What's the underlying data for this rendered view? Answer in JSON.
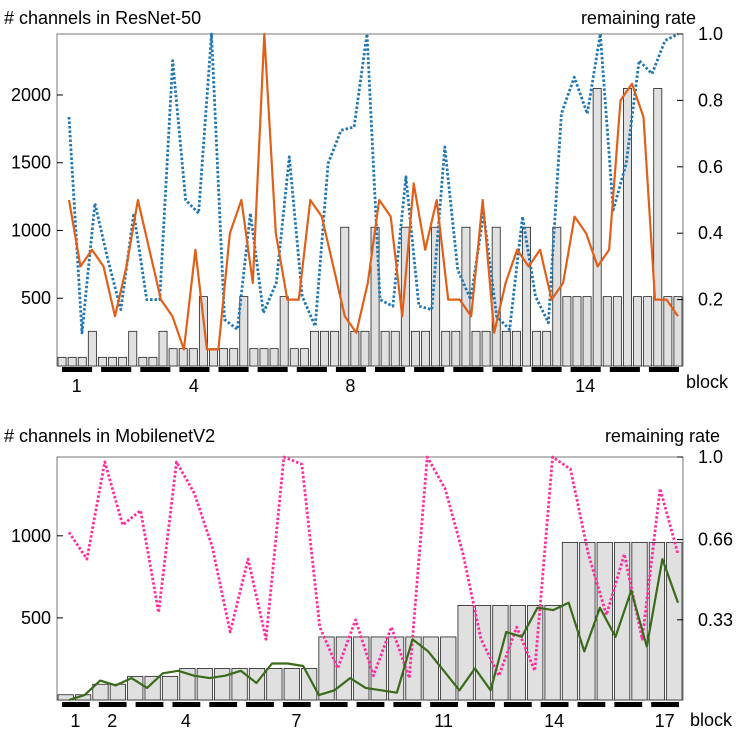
{
  "chart_data": [
    {
      "type": "bar",
      "title": "# channels in ResNet-50",
      "y2label": "remaining rate",
      "xlabel": "block",
      "ylim": [
        0,
        2450
      ],
      "y2lim": [
        0,
        1.0
      ],
      "yticks": [
        500,
        1000,
        1500,
        2000
      ],
      "y2ticks": [
        "0.2",
        "0.4",
        "0.6",
        "0.8",
        "1.0"
      ],
      "y2tick_values": [
        0.2,
        0.4,
        0.6,
        0.8,
        1.0
      ],
      "block_labels": [
        {
          "block": 1,
          "label": "1"
        },
        {
          "block": 4,
          "label": "4"
        },
        {
          "block": 8,
          "label": "8"
        },
        {
          "block": 14,
          "label": "14"
        }
      ],
      "num_blocks": 16,
      "bar_color": "#e0e0e0",
      "series": [
        {
          "role": "channels-bars",
          "values": [
            64,
            64,
            64,
            256,
            64,
            64,
            64,
            256,
            64,
            64,
            256,
            128,
            128,
            128,
            512,
            128,
            128,
            128,
            512,
            128,
            128,
            128,
            512,
            128,
            128,
            256,
            256,
            256,
            1024,
            256,
            256,
            1024,
            256,
            256,
            1024,
            256,
            256,
            1024,
            256,
            256,
            1024,
            256,
            256,
            1024,
            256,
            256,
            1024,
            256,
            256,
            1024,
            512,
            512,
            512,
            2048,
            512,
            512,
            2048,
            512,
            512,
            2048,
            512,
            512
          ]
        },
        {
          "role": "remaining-rate",
          "color": "#1f77b4",
          "style": "dotted",
          "values": [
            0.75,
            0.1,
            0.49,
            0.32,
            0.17,
            0.46,
            0.2,
            0.2,
            0.92,
            0.5,
            0.46,
            1.0,
            0.14,
            0.11,
            0.46,
            0.16,
            0.25,
            0.63,
            0.21,
            0.12,
            0.61,
            0.71,
            0.72,
            1.0,
            0.2,
            0.18,
            0.57,
            0.18,
            0.17,
            0.66,
            0.29,
            0.2,
            0.46,
            0.15,
            0.11,
            0.45,
            0.21,
            0.13,
            0.76,
            0.87,
            0.76,
            1.0,
            0.47,
            0.61,
            0.92,
            0.88,
            0.98,
            1.0
          ]
        },
        {
          "role": "pruned-channels",
          "color": "#e0601a",
          "style": "solid",
          "values": [
            0.5,
            0.3,
            0.35,
            0.3,
            0.15,
            0.3,
            0.5,
            0.35,
            0.2,
            0.15,
            0.05,
            0.35,
            0.05,
            0.05,
            0.4,
            0.5,
            0.25,
            1.0,
            0.4,
            0.2,
            0.2,
            0.5,
            0.45,
            0.3,
            0.15,
            0.1,
            0.25,
            0.5,
            0.45,
            0.15,
            0.55,
            0.35,
            0.5,
            0.2,
            0.2,
            0.15,
            0.5,
            0.1,
            0.25,
            0.35,
            0.3,
            0.35,
            0.2,
            0.25,
            0.45,
            0.4,
            0.3,
            0.35,
            0.8,
            0.85,
            0.75,
            0.2,
            0.2,
            0.15
          ]
        }
      ]
    },
    {
      "type": "bar",
      "title": "# channels in MobilenetV2",
      "y2label": "remaining rate",
      "xlabel": "block",
      "ylim": [
        0,
        1480
      ],
      "y2lim": [
        0,
        1.0
      ],
      "yticks": [
        500,
        1000
      ],
      "y2ticks": [
        "0.33",
        "0.66",
        "1.0"
      ],
      "y2tick_values": [
        0.33,
        0.66,
        1.0
      ],
      "block_labels": [
        {
          "block": 1,
          "label": "1"
        },
        {
          "block": 2,
          "label": "2"
        },
        {
          "block": 4,
          "label": "4"
        },
        {
          "block": 7,
          "label": "7"
        },
        {
          "block": 11,
          "label": "11"
        },
        {
          "block": 14,
          "label": "14"
        },
        {
          "block": 17,
          "label": "17"
        }
      ],
      "num_blocks": 17,
      "bar_color": "#e0e0e0",
      "series": [
        {
          "role": "channels-bars",
          "values": [
            32,
            32,
            96,
            96,
            144,
            144,
            144,
            192,
            192,
            192,
            192,
            192,
            192,
            192,
            192,
            384,
            384,
            384,
            384,
            384,
            384,
            384,
            384,
            576,
            576,
            576,
            576,
            576,
            576,
            960,
            960,
            960,
            960,
            960,
            960,
            960
          ]
        },
        {
          "role": "remaining-rate",
          "color": "#ff2ea0",
          "style": "dotted",
          "values": [
            0.69,
            0.58,
            0.98,
            0.72,
            0.78,
            0.36,
            0.98,
            0.85,
            0.63,
            0.28,
            0.58,
            0.25,
            1.0,
            0.97,
            0.3,
            0.13,
            0.33,
            0.1,
            0.3,
            0.09,
            1.0,
            0.87,
            0.6,
            0.25,
            0.1,
            0.3,
            0.12,
            1.0,
            0.95,
            0.6,
            0.35,
            0.6,
            0.25,
            0.87,
            0.6
          ]
        },
        {
          "role": "pruned-channels",
          "color": "#3a6b1a",
          "style": "solid",
          "values": [
            0.0,
            0.02,
            0.08,
            0.06,
            0.09,
            0.05,
            0.11,
            0.12,
            0.1,
            0.09,
            0.1,
            0.12,
            0.07,
            0.15,
            0.15,
            0.14,
            0.02,
            0.04,
            0.09,
            0.05,
            0.04,
            0.03,
            0.25,
            0.2,
            0.12,
            0.04,
            0.13,
            0.04,
            0.28,
            0.26,
            0.38,
            0.37,
            0.4,
            0.2,
            0.38,
            0.26,
            0.45,
            0.22,
            0.58,
            0.4
          ]
        }
      ]
    }
  ]
}
